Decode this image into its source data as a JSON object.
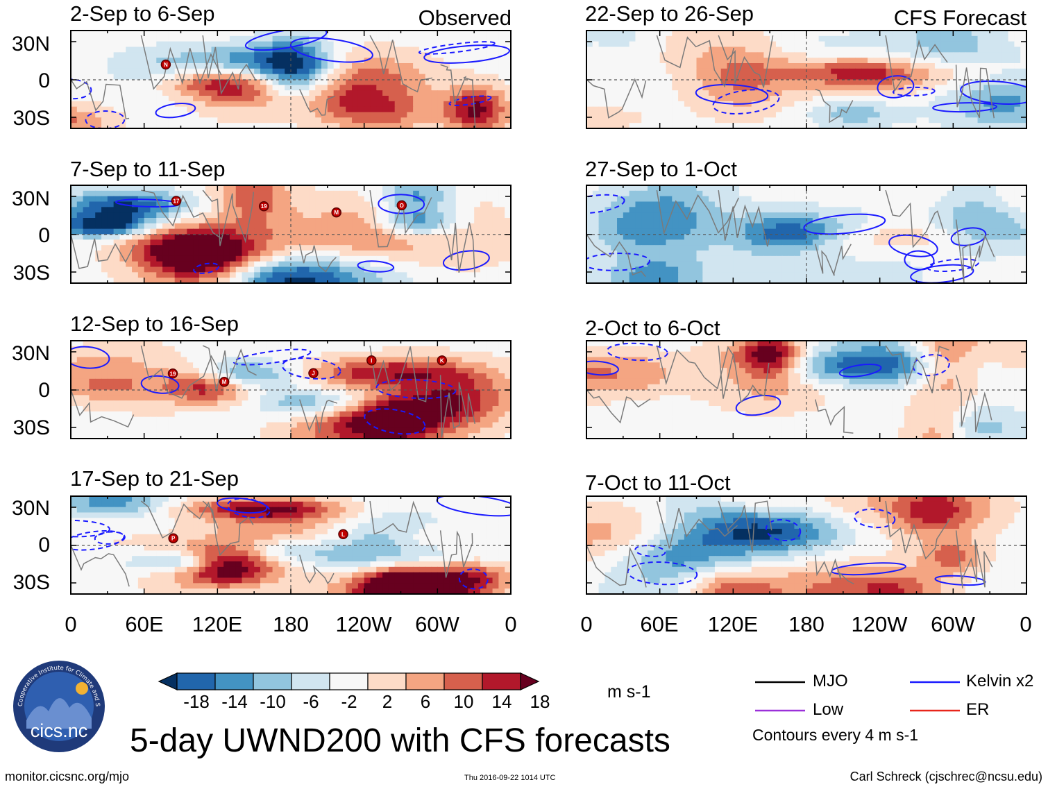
{
  "chart_data": {
    "type": "heatmap",
    "title": "5-day UWND200 with CFS forecasts",
    "variable": "UWND200",
    "units": "m s-1",
    "column_headers": [
      "Observed",
      "CFS Forecast"
    ],
    "x_tick_labels": [
      "0",
      "60E",
      "120E",
      "180",
      "120W",
      "60W",
      "0"
    ],
    "y_tick_labels": [
      "30N",
      "0",
      "30S"
    ],
    "colorbar_ticks": [
      "-18",
      "-14",
      "-10",
      "-6",
      "-2",
      "2",
      "6",
      "10",
      "14",
      "18"
    ],
    "colorbar_colors": [
      "#053061",
      "#2166ac",
      "#4393c3",
      "#92c5de",
      "#d1e5f0",
      "#f7f7f7",
      "#fddbc7",
      "#f4a582",
      "#d6604d",
      "#b2182b",
      "#67001f"
    ],
    "panels": [
      {
        "period": "2-Sep to 6-Sep",
        "source": "Observed",
        "storms": [
          "N"
        ]
      },
      {
        "period": "7-Sep to 11-Sep",
        "source": "Observed",
        "storms": [
          "17",
          "19",
          "M",
          "O"
        ]
      },
      {
        "period": "12-Sep to 16-Sep",
        "source": "Observed",
        "storms": [
          "19",
          "M",
          "J",
          "I",
          "K"
        ]
      },
      {
        "period": "17-Sep to 21-Sep",
        "source": "Observed",
        "storms": [
          "P",
          "L"
        ]
      },
      {
        "period": "22-Sep to 26-Sep",
        "source": "CFS Forecast",
        "storms": []
      },
      {
        "period": "27-Sep to 1-Oct",
        "source": "CFS Forecast",
        "storms": []
      },
      {
        "period": "2-Oct to 6-Oct",
        "source": "CFS Forecast",
        "storms": []
      },
      {
        "period": "7-Oct to 11-Oct",
        "source": "CFS Forecast",
        "storms": []
      }
    ],
    "legend": {
      "entries": [
        {
          "label": "MJO",
          "color": "#000000"
        },
        {
          "label": "Kelvin x2",
          "color": "#1a1aff"
        },
        {
          "label": "Low",
          "color": "#9b30d9"
        },
        {
          "label": "ER",
          "color": "#e8251a"
        }
      ],
      "note": "Contours every 4 m s-1"
    }
  },
  "logo": {
    "text": "cics.nc",
    "ring_text": "Cooperative Institute for Climate and Satellites"
  },
  "footer": {
    "url": "monitor.cicsnc.org/mjo",
    "timestamp": "Thu 2016-09-22 1014 UTC",
    "author": "Carl Schreck (cjschrec@ncsu.edu)"
  }
}
